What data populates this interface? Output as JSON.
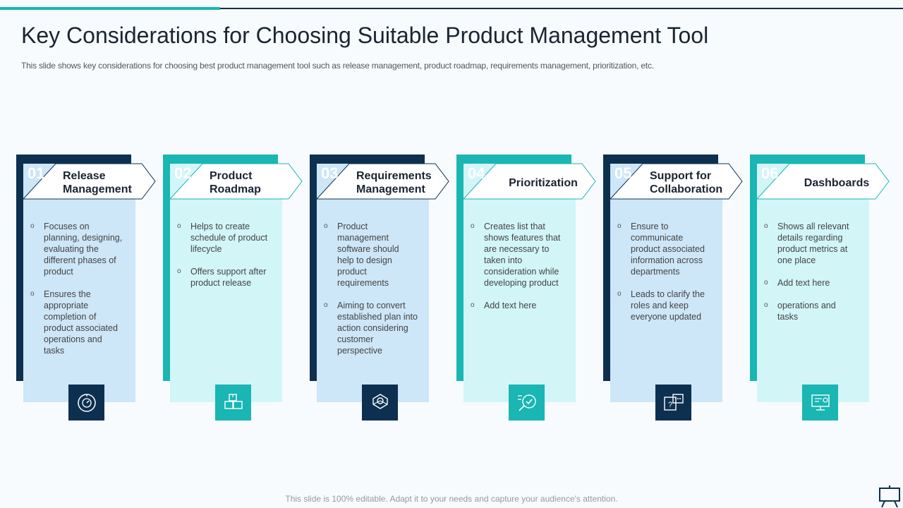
{
  "title": "Key Considerations for Choosing Suitable Product Management Tool",
  "subtitle": "This slide shows key considerations for choosing best product management tool such as release management, product roadmap, requirements management, prioritization, etc.",
  "footer": "This slide is 100% editable. Adapt it to your needs and capture your audience's attention.",
  "colors": {
    "navy": "#0d3050",
    "teal": "#19b6b3",
    "light_blue": "#cde6f8",
    "light_teal": "#d2f5f8"
  },
  "cards": [
    {
      "number": "01",
      "heading": "Release\nManagement",
      "style": "dark",
      "icon": "gauge-icon",
      "bullets": [
        "Focuses on planning, designing, evaluating the different phases of product",
        "Ensures the appropriate completion of product associated operations and tasks"
      ]
    },
    {
      "number": "02",
      "heading": "Product\nRoadmap",
      "style": "teal",
      "icon": "boxes-icon",
      "bullets": [
        "Helps to create schedule of product lifecycle",
        "Offers support after product release"
      ]
    },
    {
      "number": "03",
      "heading": "Requirements\nManagement",
      "style": "dark",
      "icon": "gear-box-icon",
      "bullets": [
        "Product management software should help to design product requirements",
        "Aiming to convert established plan into action considering customer perspective"
      ]
    },
    {
      "number": "04",
      "heading": "Prioritization",
      "style": "teal",
      "icon": "checklist-target-icon",
      "bullets": [
        "Creates list that shows features that are necessary to taken into consideration while developing  product",
        "Add text here"
      ]
    },
    {
      "number": "05",
      "heading": "Support for\nCollaboration",
      "style": "dark",
      "icon": "chat-question-icon",
      "bullets": [
        "Ensure to communicate product associated information across departments",
        "Leads to clarify the roles and keep everyone updated"
      ]
    },
    {
      "number": "06",
      "heading": "Dashboards",
      "style": "teal",
      "icon": "monitor-dashboard-icon",
      "bullets": [
        "Shows all relevant details regarding product metrics at one place",
        "Add text here",
        "operations and tasks"
      ]
    }
  ]
}
